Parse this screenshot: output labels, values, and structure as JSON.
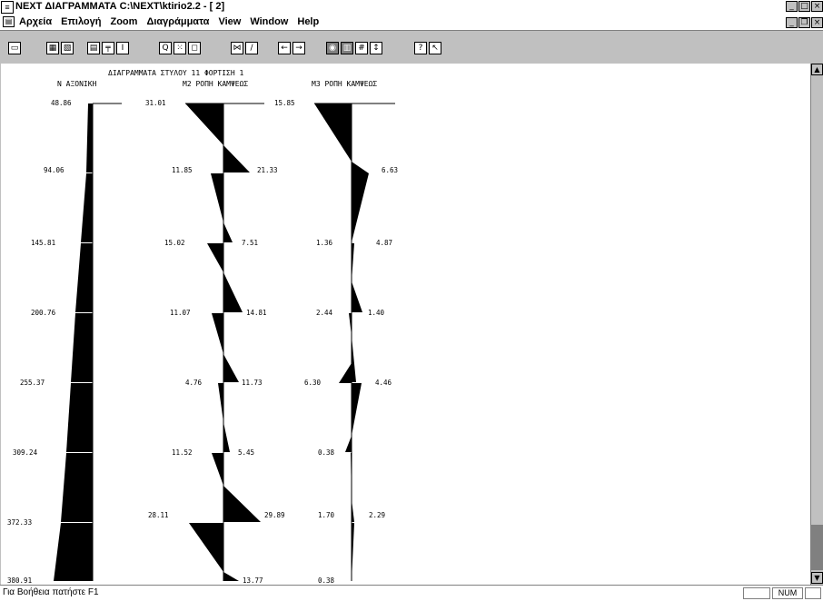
{
  "window": {
    "title": "NEXT ΔΙΑΓΡΑΜΜΑΤΑ  C:\\NEXT\\ktirio2.2 - [ 2]"
  },
  "menu": {
    "items": [
      "Αρχεία",
      "Επιλογή",
      "Zoom",
      "Διαγράμματα",
      "View",
      "Window",
      "Help"
    ]
  },
  "toolbar": {
    "icons": [
      "open-icon",
      "print-icon",
      "print-setup-icon",
      "copy-icon",
      "ruler-icon",
      "cursor-icon",
      "zoom-icon",
      "zoom-window-icon",
      "zoom-fit-icon",
      "beam-icon",
      "column-icon",
      "arrow-left-icon",
      "arrow-right-icon",
      "diagram-icon",
      "grid-icon",
      "numbers-icon",
      "vertical-icon",
      "help-icon",
      "context-help-icon"
    ]
  },
  "diagram": {
    "title": "ΔΙΑΓΡΑΜΜΑΤΑ ΣΤΥΛΟΥ 11    ΦΟΡΤΙΣΗ 1",
    "panels": [
      {
        "heading": "N ΑΞΟΝΙΚΗ",
        "left_labels": [
          "48.86",
          "94.06",
          "145.81",
          "200.76",
          "255.37",
          "309.24",
          "372.33",
          "380.91"
        ],
        "right_labels": []
      },
      {
        "heading": "M2 ΡΟΠΗ ΚΑΜΨΕΩΣ",
        "left_labels": [
          "31.01",
          "11.85",
          "15.02",
          "11.07",
          "4.76",
          "11.52",
          "28.11"
        ],
        "right_labels": [
          "21.33",
          "7.51",
          "14.81",
          "11.73",
          "5.45",
          "29.89",
          "13.77"
        ]
      },
      {
        "heading": "M3 ΡΟΠΗ ΚΑΜΨΕΩΣ",
        "left_labels": [
          "15.85",
          "1.36",
          "2.44",
          "6.30",
          "0.38",
          "1.70",
          "0.38"
        ],
        "right_labels": [
          "6.63",
          "4.87",
          "1.40",
          "4.46",
          "2.29"
        ]
      }
    ]
  },
  "statusbar": {
    "message": "Για Βοήθεια πατήστε F1",
    "num": "NUM"
  }
}
